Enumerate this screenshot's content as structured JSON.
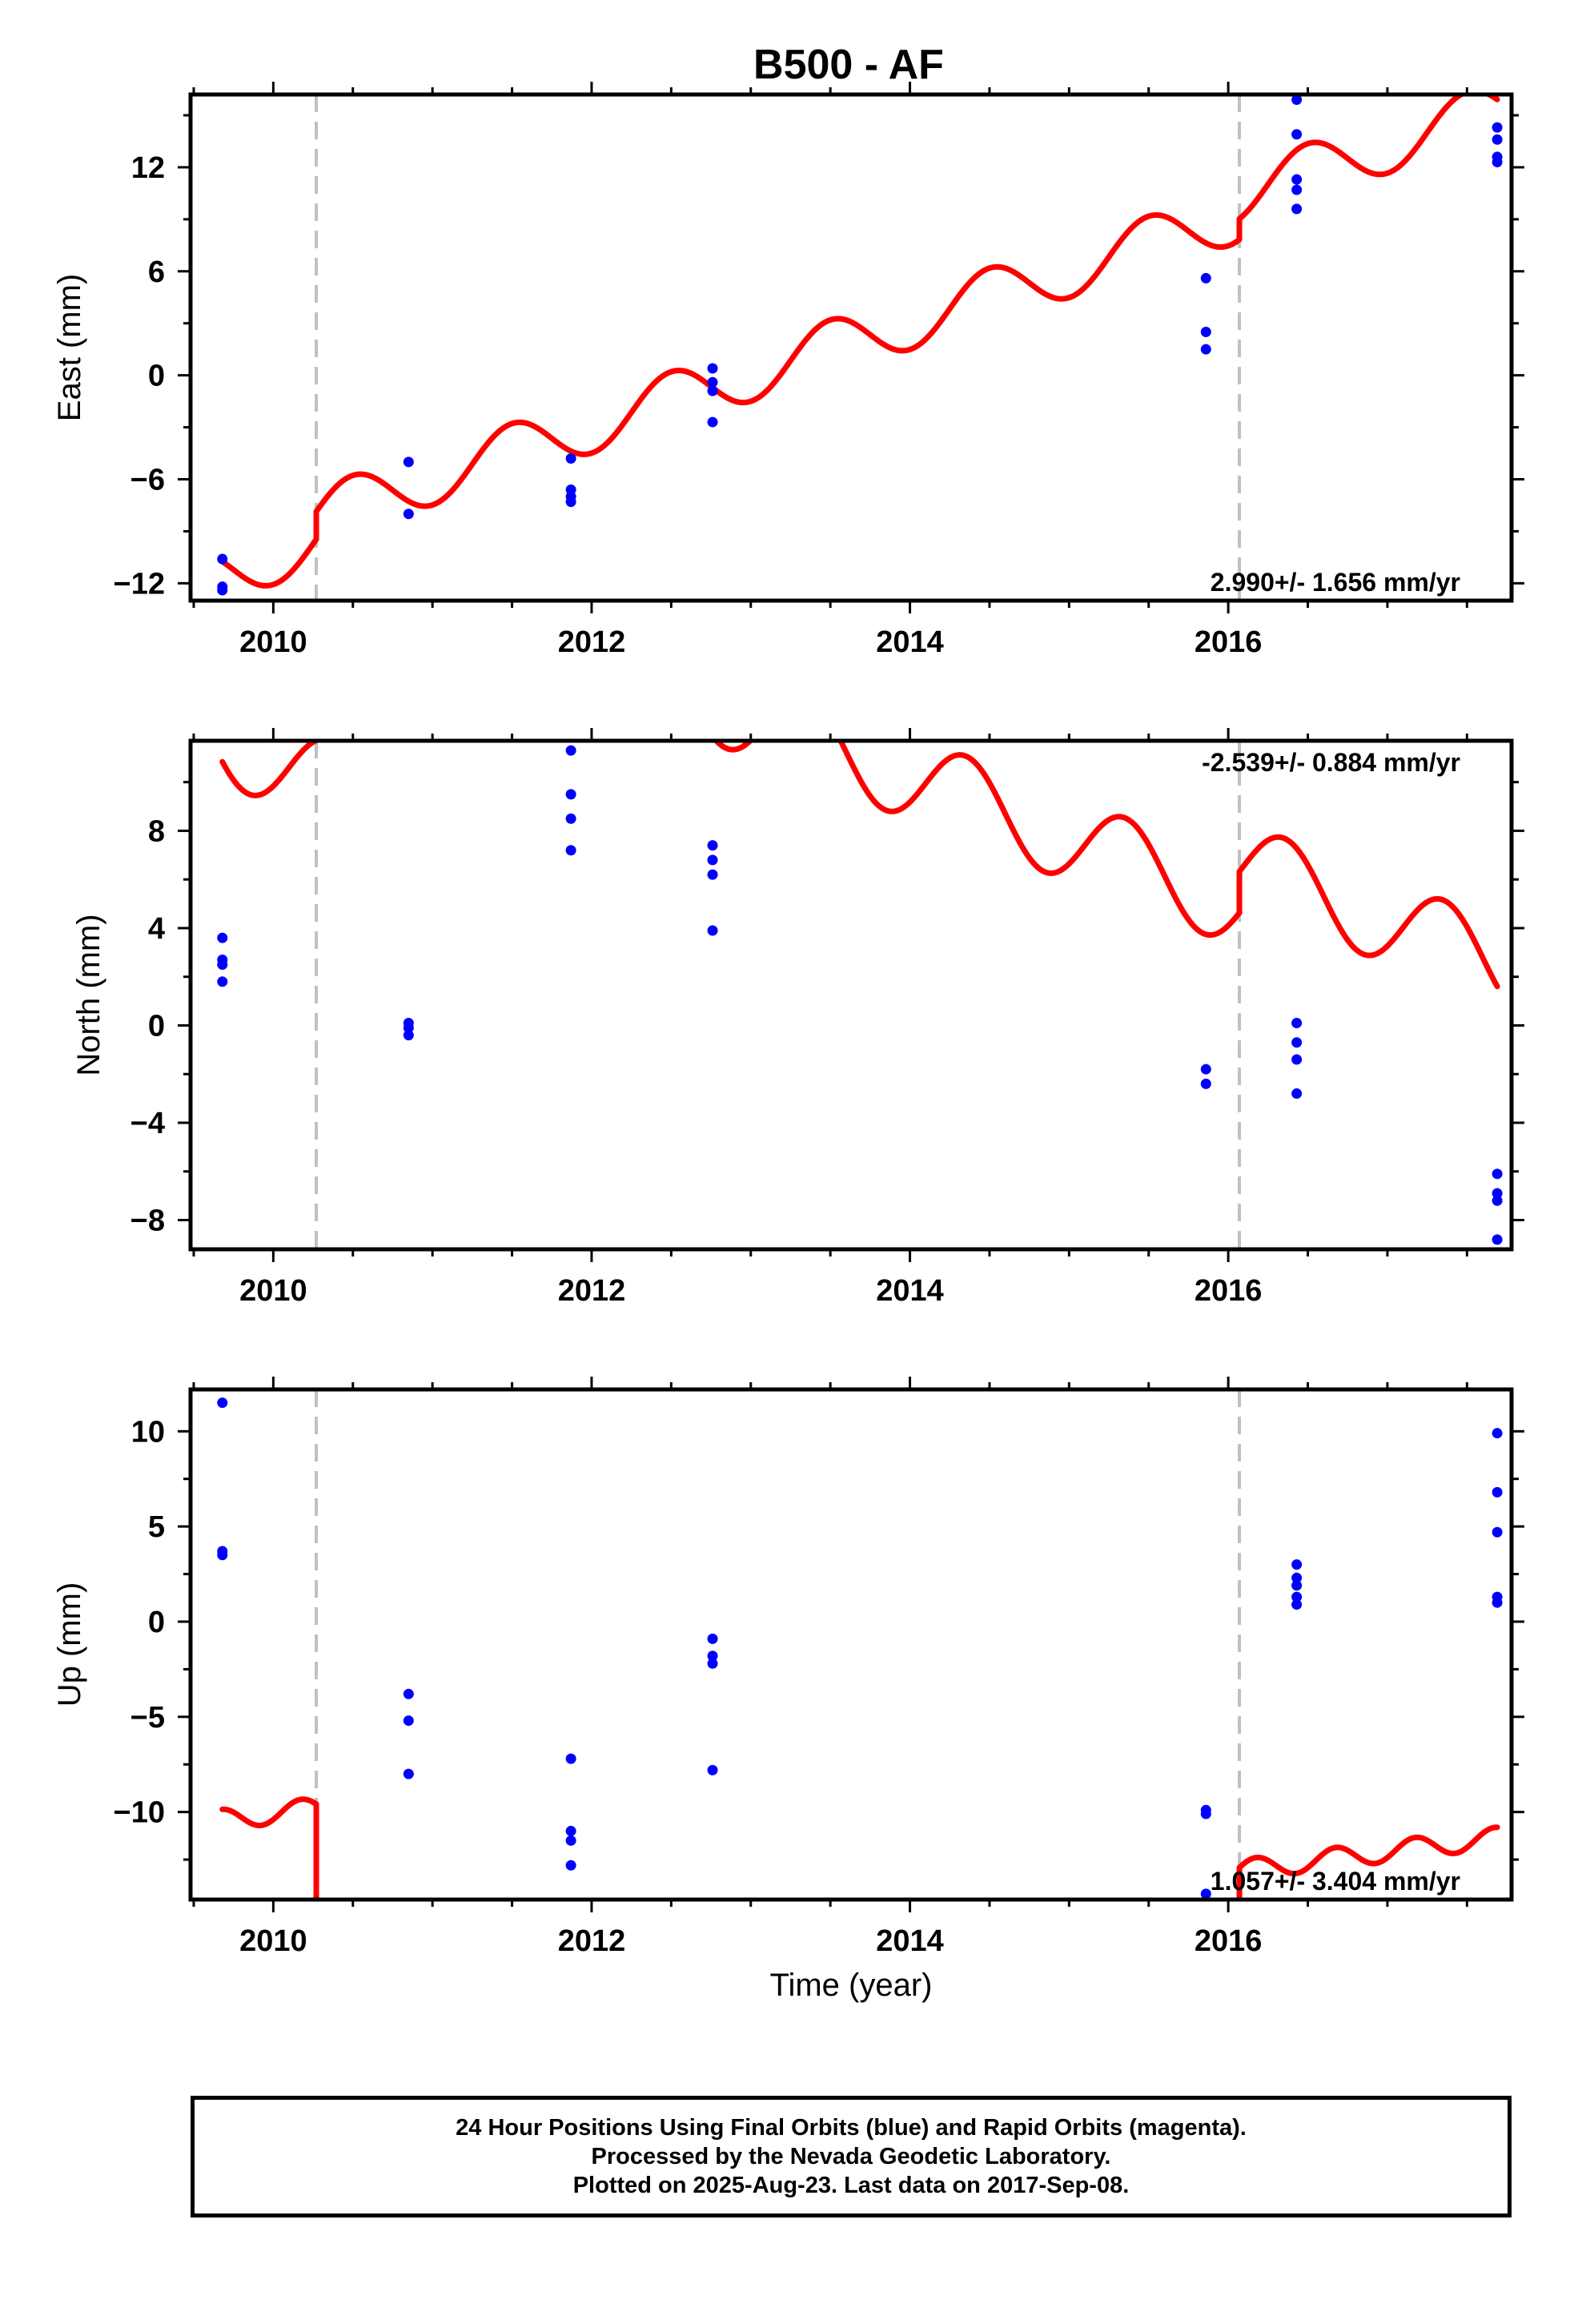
{
  "title": "B500 - AF",
  "xlabel": "Time (year)",
  "x_ticks": [
    2010,
    2012,
    2014,
    2016
  ],
  "colors": {
    "model": "#ff0000",
    "final_orbits": "#0000ff",
    "offset_line": "#c0c0c0",
    "frame": "#000000"
  },
  "offset_epochs": [
    2010.27,
    2016.07
  ],
  "footer": {
    "line1": "24 Hour Positions Using Final Orbits (blue) and Rapid Orbits (magenta).",
    "line2": "Processed by the Nevada Geodetic Laboratory.",
    "line3": "Plotted on 2025-Aug-23. Last data on 2017-Sep-08."
  },
  "chart_data": [
    {
      "type": "scatter",
      "ylabel": "East (mm)",
      "xlim": [
        2009.48,
        2017.78
      ],
      "ylim": [
        -13.0,
        16.2
      ],
      "y_ticks": [
        -12,
        -6,
        0,
        6,
        12
      ],
      "rate_label": "2.990+/- 1.656 mm/yr",
      "rate_position": "bottom-right",
      "points": [
        [
          2009.68,
          -10.6
        ],
        [
          2009.68,
          -12.2
        ],
        [
          2009.68,
          -12.4
        ],
        [
          2010.85,
          -5.0
        ],
        [
          2010.85,
          -8.0
        ],
        [
          2011.87,
          -4.8
        ],
        [
          2011.87,
          -6.6
        ],
        [
          2011.87,
          -7.0
        ],
        [
          2011.87,
          -7.3
        ],
        [
          2012.76,
          0.4
        ],
        [
          2012.76,
          -0.4
        ],
        [
          2012.76,
          -0.9
        ],
        [
          2012.76,
          -2.7
        ],
        [
          2015.86,
          5.6
        ],
        [
          2015.86,
          2.5
        ],
        [
          2015.86,
          1.5
        ],
        [
          2016.43,
          15.9
        ],
        [
          2016.43,
          13.9
        ],
        [
          2016.43,
          11.3
        ],
        [
          2016.43,
          10.7
        ],
        [
          2016.43,
          9.6
        ],
        [
          2017.69,
          14.3
        ],
        [
          2017.69,
          13.6
        ],
        [
          2017.69,
          12.6
        ],
        [
          2017.69,
          12.3
        ]
      ],
      "model": {
        "x0": 2009.68,
        "x1": 2017.69,
        "t_ref": 2013.0,
        "intercept": -1.5,
        "rate": 2.99,
        "amp": 1.6,
        "period": 1.0,
        "phase": 2013.25,
        "offsets": [
          [
            2010.27,
            1.6
          ],
          [
            2016.07,
            1.2
          ]
        ]
      }
    },
    {
      "type": "scatter",
      "ylabel": "North (mm)",
      "xlim": [
        2009.48,
        2017.78
      ],
      "ylim": [
        -9.2,
        11.7
      ],
      "y_ticks": [
        -8,
        -4,
        0,
        4,
        8
      ],
      "rate_label": "-2.539+/- 0.884 mm/yr",
      "rate_position": "top-right",
      "points": [
        [
          2009.68,
          3.6
        ],
        [
          2009.68,
          2.7
        ],
        [
          2009.68,
          2.5
        ],
        [
          2009.68,
          1.8
        ],
        [
          2010.85,
          0.1
        ],
        [
          2010.85,
          -0.1
        ],
        [
          2010.85,
          -0.4
        ],
        [
          2011.87,
          11.3
        ],
        [
          2011.87,
          9.5
        ],
        [
          2011.87,
          8.5
        ],
        [
          2011.87,
          7.2
        ],
        [
          2012.76,
          7.4
        ],
        [
          2012.76,
          6.8
        ],
        [
          2012.76,
          6.2
        ],
        [
          2012.76,
          3.9
        ],
        [
          2015.86,
          -1.8
        ],
        [
          2015.86,
          -2.4
        ],
        [
          2016.43,
          0.1
        ],
        [
          2016.43,
          -0.7
        ],
        [
          2016.43,
          -1.4
        ],
        [
          2016.43,
          -2.8
        ],
        [
          2017.69,
          -6.1
        ],
        [
          2017.69,
          -6.9
        ],
        [
          2017.69,
          -7.2
        ],
        [
          2017.69,
          -8.8
        ]
      ],
      "model": {
        "x0": 2009.68,
        "x1": 2017.69,
        "t_ref": 2013.0,
        "intercept": 3.25,
        "rate": -2.539,
        "amp": 1.75,
        "period": 1.0,
        "phase": 2013.1,
        "offsets": [
          [
            2010.27,
            9.5
          ],
          [
            2016.07,
            1.7
          ]
        ]
      }
    },
    {
      "type": "scatter",
      "ylabel": "Up (mm)",
      "xlim": [
        2009.48,
        2017.78
      ],
      "ylim": [
        -14.6,
        12.2
      ],
      "y_ticks": [
        -10,
        -5,
        0,
        5,
        10
      ],
      "rate_label": "1.057+/- 3.404 mm/yr",
      "rate_position": "bottom-right",
      "points": [
        [
          2009.68,
          11.5
        ],
        [
          2009.68,
          3.7
        ],
        [
          2009.68,
          3.5
        ],
        [
          2010.85,
          -3.8
        ],
        [
          2010.85,
          -5.2
        ],
        [
          2010.85,
          -8.0
        ],
        [
          2011.87,
          -7.2
        ],
        [
          2011.87,
          -11.0
        ],
        [
          2011.87,
          -11.5
        ],
        [
          2011.87,
          -12.8
        ],
        [
          2012.76,
          -0.9
        ],
        [
          2012.76,
          -1.8
        ],
        [
          2012.76,
          -2.2
        ],
        [
          2012.76,
          -7.8
        ],
        [
          2015.86,
          -9.9
        ],
        [
          2015.86,
          -10.1
        ],
        [
          2015.86,
          -14.3
        ],
        [
          2016.43,
          3.0
        ],
        [
          2016.43,
          2.3
        ],
        [
          2016.43,
          1.9
        ],
        [
          2016.43,
          1.3
        ],
        [
          2016.43,
          0.9
        ],
        [
          2017.69,
          9.9
        ],
        [
          2017.69,
          6.8
        ],
        [
          2017.69,
          4.7
        ],
        [
          2017.69,
          1.3
        ],
        [
          2017.69,
          1.0
        ]
      ],
      "model": {
        "x0": 2009.68,
        "x1": 2017.69,
        "t_ref": 2013.0,
        "intercept": -6.9,
        "rate": 1.057,
        "amp": 0.55,
        "period": 0.5,
        "phase": 2013.05,
        "offsets": [
          [
            2010.27,
            -15.0
          ],
          [
            2016.07,
            5.6
          ]
        ]
      }
    }
  ]
}
